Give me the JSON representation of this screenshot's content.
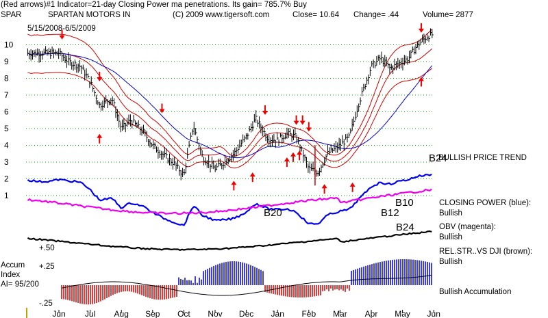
{
  "header": {
    "line1": "(Red arrows)#1 Indicator=21-day Closing Power ma penetrations. Its gain= 785.7% Buy",
    "line2_ticker": "SPAR",
    "line2_company": "SPARTAN MOTORS IN",
    "line2_copyright": "(C) 2009 www.tigersoft.com",
    "line2_close": "Close=  10.64",
    "line2_change": "Change= .44",
    "line2_volume": "Volume= 2877",
    "date_range": "5/15/2008-6/5/2009"
  },
  "colors": {
    "price": "#000000",
    "ma_red": "#cc0000",
    "ma_blue": "#0000cc",
    "closing_power": "#0000ee",
    "obv": "#ee00ee",
    "relstr": "#000000",
    "accum_neg": "#cc0000",
    "accum_pos": "#0000cc",
    "arrow": "#ee0000",
    "grid": "#009900"
  },
  "chart_data": {
    "type": "line",
    "x_tick_labels": [
      "Jun",
      "Jul",
      "Aug",
      "Sep",
      "Oct",
      "Nov",
      "Dec",
      "Jan",
      "Feb",
      "Mar",
      "Apr",
      "May",
      "Jun"
    ],
    "y_ticks": [
      1,
      2,
      3,
      4,
      5,
      6,
      7,
      8,
      9,
      10
    ],
    "price_series": {
      "months": [
        0,
        0.3,
        0.7,
        1.0,
        1.3,
        1.7,
        2.0,
        2.3,
        2.7,
        3.0,
        3.3,
        3.7,
        4.0,
        4.3,
        4.6,
        5.0,
        5.3,
        5.6,
        6.0,
        6.3,
        6.7,
        7.0,
        7.3,
        7.6,
        8.0,
        8.3,
        8.6,
        9.0,
        9.3,
        9.6,
        10.0,
        10.3,
        10.6,
        11.0,
        11.2,
        11.4,
        11.6,
        11.8,
        12.0
      ],
      "close": [
        9.5,
        9.0,
        8.7,
        7.8,
        6.4,
        6.8,
        5.0,
        5.5,
        4.8,
        4.0,
        3.5,
        2.9,
        2.2,
        5.2,
        3.3,
        2.6,
        3.0,
        3.5,
        4.5,
        5.6,
        4.4,
        4.3,
        4.7,
        4.5,
        2.6,
        2.4,
        3.5,
        4.0,
        4.5,
        6.5,
        8.7,
        9.2,
        8.6,
        9.0,
        9.2,
        9.8,
        10.2,
        10.5,
        10.64
      ]
    },
    "signals": [
      {
        "label": "B20"
      },
      {
        "label": "B12"
      },
      {
        "label": "B10"
      },
      {
        "label": "B24"
      },
      {
        "label": "B24"
      }
    ],
    "panel_labels": {
      "price_trend": "BULLISH PRICE TREND",
      "closing_power_title": "CLOSING POWER (blue):",
      "closing_power_state": "Bullish",
      "obv_title": "OBV (magenta):",
      "obv_state": "Bullish",
      "relstr_title": "REL.STR..VS DJI (brown):",
      "relstr_state": "Bullish",
      "accum_state": "Bullish Accumulation",
      "accum_index_line1": "Accum",
      "accum_index_line2": "Index",
      "accum_index_value": "AI= 95/200",
      "relstr_plus50": "+.50",
      "accum_plus25": "+.25",
      "accum_minus25": "-.25"
    }
  }
}
